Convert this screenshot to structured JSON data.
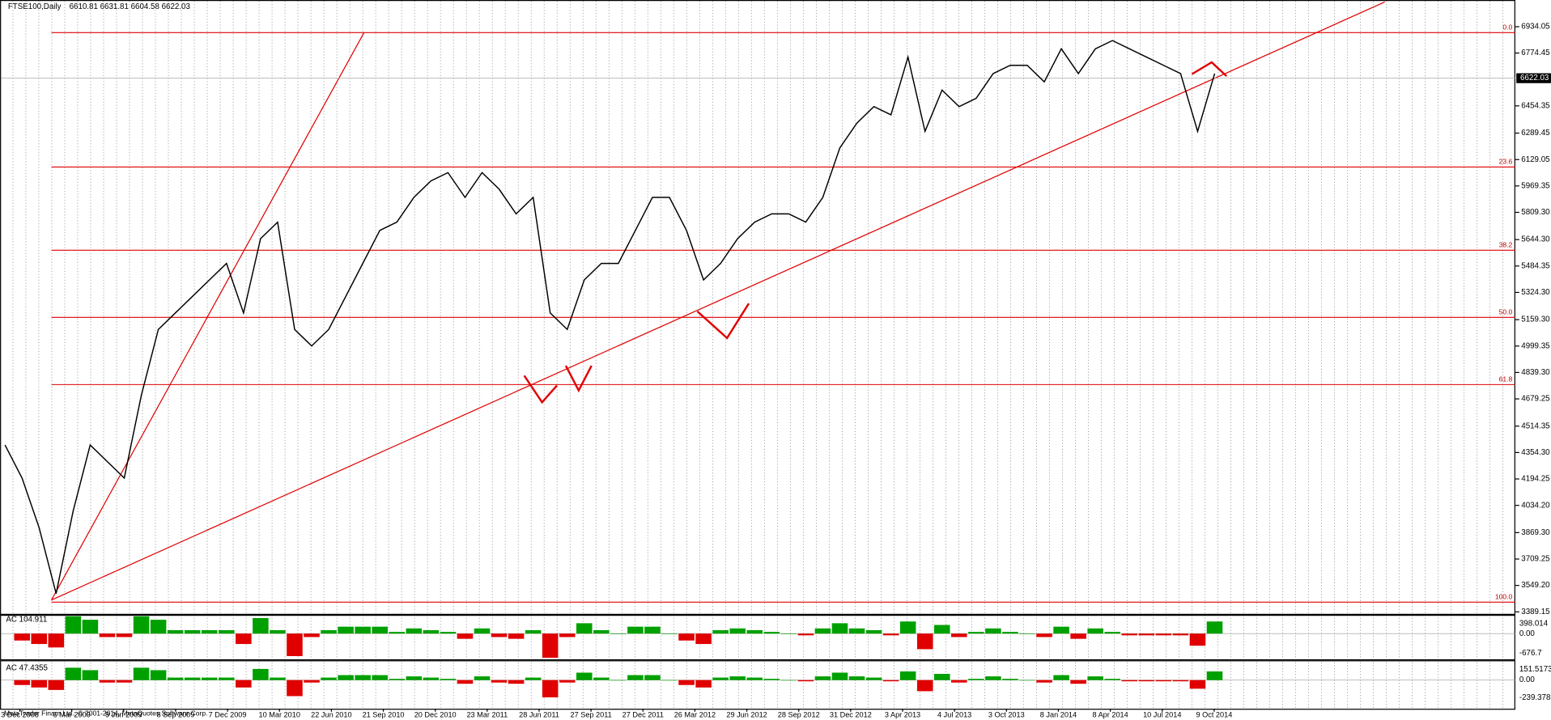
{
  "header": {
    "title": "FTSE100,Daily",
    "ohlc": "6610.81 6631.81 6604.58 6622.03"
  },
  "price_axis": {
    "ticks": [
      {
        "value": 6934.05,
        "label": "6934.05"
      },
      {
        "value": 6774.45,
        "label": "6774.45"
      },
      {
        "value": 6454.35,
        "label": "6454.35"
      },
      {
        "value": 6289.45,
        "label": "6289.45"
      },
      {
        "value": 6129.05,
        "label": "6129.05"
      },
      {
        "value": 5969.35,
        "label": "5969.35"
      },
      {
        "value": 5809.3,
        "label": "5809.30"
      },
      {
        "value": 5644.3,
        "label": "5644.30"
      },
      {
        "value": 5484.35,
        "label": "5484.35"
      },
      {
        "value": 5324.3,
        "label": "5324.30"
      },
      {
        "value": 5159.3,
        "label": "5159.30"
      },
      {
        "value": 4999.35,
        "label": "4999.35"
      },
      {
        "value": 4839.3,
        "label": "4839.30"
      },
      {
        "value": 4679.25,
        "label": "4679.25"
      },
      {
        "value": 4514.35,
        "label": "4514.35"
      },
      {
        "value": 4354.3,
        "label": "4354.30"
      },
      {
        "value": 4194.25,
        "label": "4194.25"
      },
      {
        "value": 4034.2,
        "label": "4034.20"
      },
      {
        "value": 3869.3,
        "label": "3869.30"
      },
      {
        "value": 3709.25,
        "label": "3709.25"
      },
      {
        "value": 3549.2,
        "label": "3549.20"
      },
      {
        "value": 3389.15,
        "label": "3389.15"
      }
    ],
    "current": 6622.03
  },
  "fib_levels": [
    {
      "value": 6898,
      "label": "0.0"
    },
    {
      "value": 6084,
      "label": "23.6"
    },
    {
      "value": 5580,
      "label": "38.2"
    },
    {
      "value": 5173,
      "label": "50.0"
    },
    {
      "value": 4766,
      "label": "61.8"
    },
    {
      "value": 3448,
      "label": "100.0"
    }
  ],
  "price": {
    "values": [
      4400,
      4200,
      3900,
      3500,
      4000,
      4400,
      4300,
      4200,
      4700,
      5100,
      5200,
      5300,
      5400,
      5500,
      5200,
      5650,
      5750,
      5100,
      5000,
      5100,
      5300,
      5500,
      5700,
      5750,
      5900,
      6000,
      6050,
      5900,
      6050,
      5950,
      5800,
      5900,
      5200,
      5100,
      5400,
      5500,
      5500,
      5700,
      5900,
      5900,
      5700,
      5400,
      5500,
      5650,
      5750,
      5800,
      5800,
      5750,
      5900,
      6200,
      6350,
      6450,
      6400,
      6750,
      6300,
      6550,
      6450,
      6500,
      6650,
      6700,
      6700,
      6600,
      6800,
      6650,
      6800,
      6850,
      6800,
      6750,
      6700,
      6650,
      6300,
      6650
    ]
  },
  "indicators": [
    {
      "label": "AC 104.911",
      "axis": [
        "398.014",
        "0.00",
        "-676.7"
      ]
    },
    {
      "label": "AC 47.4355",
      "axis": [
        "151.5173",
        "0.00",
        "-239.3783"
      ]
    }
  ],
  "time_axis": [
    "3 Dec 2008",
    "6 Mar 2009",
    "9 Jun 2009",
    "8 Sep 2009",
    "7 Dec 2009",
    "10 Mar 2010",
    "22 Jun 2010",
    "21 Sep 2010",
    "20 Dec 2010",
    "23 Mar 2011",
    "28 Jun 2011",
    "27 Sep 2011",
    "27 Dec 2011",
    "26 Mar 2012",
    "29 Jun 2012",
    "28 Sep 2012",
    "31 Dec 2012",
    "3 Apr 2013",
    "4 Jul 2013",
    "3 Oct 2013",
    "8 Jan 2014",
    "8 Apr 2014",
    "10 Jul 2014",
    "9 Oct 2014"
  ],
  "copyright": "MetaTrader Finam Ltd., © 2001-2014, MetaQuotes Software Corp."
}
